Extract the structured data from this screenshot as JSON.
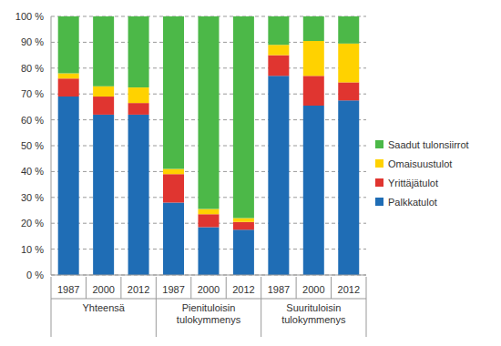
{
  "chart_data": {
    "type": "bar",
    "stacked": true,
    "grid": true,
    "legend": "right",
    "categories": [
      "1987",
      "2000",
      "2012",
      "1987",
      "2000",
      "2012",
      "1987",
      "2000",
      "2012"
    ],
    "category_groups": [
      {
        "label": "Yhteensä",
        "categories": [
          "1987",
          "2000",
          "2012"
        ]
      },
      {
        "label": "Pienituloisin tulokymmenys",
        "categories": [
          "1987",
          "2000",
          "2012"
        ]
      },
      {
        "label": "Suurituloisin tulokymmenys",
        "categories": [
          "1987",
          "2000",
          "2012"
        ]
      }
    ],
    "series": [
      {
        "name": "Palkkatulot",
        "color": "#1f6db5",
        "values": [
          69,
          62,
          62,
          28,
          18.5,
          17.5,
          77,
          65.5,
          67.5
        ]
      },
      {
        "name": "Yrittäjätulot",
        "color": "#e03530",
        "values": [
          7,
          7,
          4.5,
          11,
          5,
          3,
          8,
          11.5,
          7
        ]
      },
      {
        "name": "Omaisuustulot",
        "color": "#ffd200",
        "values": [
          2,
          4,
          6,
          2,
          2,
          1.5,
          4,
          13.5,
          15
        ]
      },
      {
        "name": "Saadut tulonsiirrot",
        "color": "#4cb848",
        "values": [
          22,
          27,
          27.5,
          59,
          74.5,
          78,
          11,
          9.5,
          10.5
        ]
      }
    ],
    "ylim": [
      0,
      100
    ],
    "yticks": [
      {
        "value": 0,
        "label": "0 %"
      },
      {
        "value": 10,
        "label": "10 %"
      },
      {
        "value": 20,
        "label": "20 %"
      },
      {
        "value": 30,
        "label": "30 %"
      },
      {
        "value": 40,
        "label": "40 %"
      },
      {
        "value": 50,
        "label": "50 %"
      },
      {
        "value": 60,
        "label": "60 %"
      },
      {
        "value": 70,
        "label": "70 %"
      },
      {
        "value": 80,
        "label": "80 %"
      },
      {
        "value": 90,
        "label": "90 %"
      },
      {
        "value": 100,
        "label": "100 %"
      }
    ]
  }
}
